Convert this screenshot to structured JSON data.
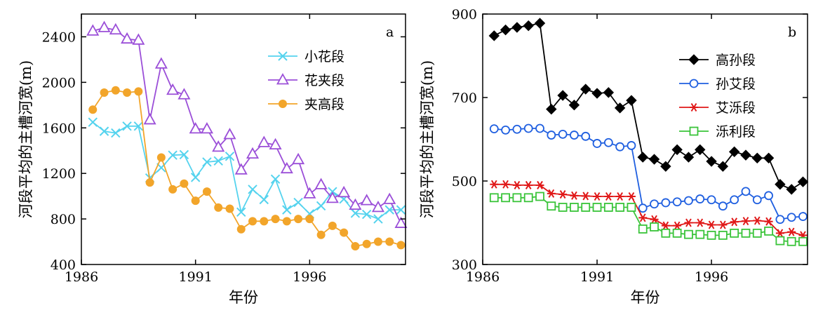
{
  "chart_data": [
    {
      "type": "line",
      "panel_label": "a",
      "xlabel": "年份",
      "ylabel": "河段平均的主槽河宽(m)",
      "xlim": [
        1986,
        2000.2
      ],
      "ylim": [
        400,
        2600
      ],
      "xticks": [
        1986,
        1991,
        1996
      ],
      "yticks": [
        400,
        800,
        1200,
        1600,
        2000,
        2400
      ],
      "x_tick_labels": [
        "1986",
        "1991",
        "1996"
      ],
      "y_tick_labels": [
        "400",
        "800",
        "1200",
        "1600",
        "2000",
        "2400"
      ],
      "legend_position": "upper-right",
      "series": [
        {
          "name": "小花段",
          "color": "#55d3ee",
          "marker": "x",
          "x": [
            1986.5,
            1987,
            1987.5,
            1988,
            1988.5,
            1989,
            1989.5,
            1990,
            1990.5,
            1991,
            1991.5,
            1992,
            1992.5,
            1993,
            1993.5,
            1994,
            1994.5,
            1995,
            1995.5,
            1996,
            1996.5,
            1997,
            1997.5,
            1998,
            1998.5,
            1999,
            1999.5,
            2000
          ],
          "values": [
            1650,
            1570,
            1555,
            1615,
            1615,
            1160,
            1250,
            1360,
            1365,
            1165,
            1300,
            1310,
            1350,
            860,
            1060,
            970,
            1150,
            880,
            945,
            845,
            915,
            1040,
            975,
            850,
            840,
            800,
            880,
            880
          ]
        },
        {
          "name": "花夹段",
          "color": "#9b4fd8",
          "marker": "triangle",
          "x": [
            1986.5,
            1987,
            1987.5,
            1988,
            1988.5,
            1989,
            1989.5,
            1990,
            1990.5,
            1991,
            1991.5,
            1992,
            1992.5,
            1993,
            1993.5,
            1994,
            1994.5,
            1995,
            1995.5,
            1996,
            1996.5,
            1997,
            1997.5,
            1998,
            1998.5,
            1999,
            1999.5,
            2000
          ],
          "values": [
            2450,
            2480,
            2460,
            2380,
            2370,
            1670,
            2160,
            1930,
            1890,
            1590,
            1590,
            1430,
            1540,
            1230,
            1370,
            1470,
            1450,
            1240,
            1320,
            1020,
            1100,
            980,
            1030,
            920,
            960,
            900,
            970,
            760
          ]
        },
        {
          "name": "夹高段",
          "color": "#f2a52a",
          "marker": "circle",
          "x": [
            1986.5,
            1987,
            1987.5,
            1988,
            1988.5,
            1989,
            1989.5,
            1990,
            1990.5,
            1991,
            1991.5,
            1992,
            1992.5,
            1993,
            1993.5,
            1994,
            1994.5,
            1995,
            1995.5,
            1996,
            1996.5,
            1997,
            1997.5,
            1998,
            1998.5,
            1999,
            1999.5,
            2000
          ],
          "values": [
            1760,
            1910,
            1930,
            1910,
            1920,
            1120,
            1340,
            1060,
            1110,
            960,
            1040,
            900,
            890,
            710,
            780,
            780,
            800,
            780,
            800,
            800,
            660,
            740,
            680,
            560,
            580,
            600,
            600,
            570
          ]
        }
      ]
    },
    {
      "type": "line",
      "panel_label": "b",
      "xlabel": "年份",
      "ylabel": "河段平均的主槽河宽(m)",
      "xlim": [
        1986,
        2000.2
      ],
      "ylim": [
        300,
        900
      ],
      "xticks": [
        1986,
        1991,
        1996
      ],
      "yticks": [
        300,
        500,
        700,
        900
      ],
      "x_tick_labels": [
        "1986",
        "1991",
        "1996"
      ],
      "y_tick_labels": [
        "300",
        "500",
        "700",
        "900"
      ],
      "legend_position": "upper-right",
      "series": [
        {
          "name": "高孙段",
          "color": "#000000",
          "marker": "diamond",
          "x": [
            1986.5,
            1987,
            1987.5,
            1988,
            1988.5,
            1989,
            1989.5,
            1990,
            1990.5,
            1991,
            1991.5,
            1992,
            1992.5,
            1993,
            1993.5,
            1994,
            1994.5,
            1995,
            1995.5,
            1996,
            1996.5,
            1997,
            1997.5,
            1998,
            1998.5,
            1999,
            1999.5,
            2000
          ],
          "values": [
            848,
            862,
            868,
            872,
            878,
            672,
            705,
            682,
            720,
            710,
            712,
            675,
            693,
            557,
            552,
            535,
            575,
            557,
            575,
            547,
            535,
            570,
            562,
            555,
            555,
            492,
            480,
            498
          ]
        },
        {
          "name": "孙艾段",
          "color": "#1f5fe0",
          "marker": "circle-open",
          "x": [
            1986.5,
            1987,
            1987.5,
            1988,
            1988.5,
            1989,
            1989.5,
            1990,
            1990.5,
            1991,
            1991.5,
            1992,
            1992.5,
            1993,
            1993.5,
            1994,
            1994.5,
            1995,
            1995.5,
            1996,
            1996.5,
            1997,
            1997.5,
            1998,
            1998.5,
            1999,
            1999.5,
            2000
          ],
          "values": [
            625,
            622,
            624,
            626,
            626,
            610,
            612,
            610,
            607,
            590,
            592,
            582,
            585,
            435,
            445,
            448,
            450,
            453,
            457,
            455,
            440,
            455,
            475,
            455,
            465,
            408,
            413,
            415
          ]
        },
        {
          "name": "艾泺段",
          "color": "#e01818",
          "marker": "asterisk",
          "x": [
            1986.5,
            1987,
            1987.5,
            1988,
            1988.5,
            1989,
            1989.5,
            1990,
            1990.5,
            1991,
            1991.5,
            1992,
            1992.5,
            1993,
            1993.5,
            1994,
            1994.5,
            1995,
            1995.5,
            1996,
            1996.5,
            1997,
            1997.5,
            1998,
            1998.5,
            1999,
            1999.5,
            2000
          ],
          "values": [
            492,
            492,
            490,
            490,
            490,
            470,
            468,
            465,
            464,
            463,
            463,
            463,
            463,
            412,
            408,
            393,
            393,
            400,
            400,
            395,
            395,
            402,
            404,
            405,
            403,
            375,
            378,
            370
          ]
        },
        {
          "name": "泺利段",
          "color": "#3ac43a",
          "marker": "square-open",
          "x": [
            1986.5,
            1987,
            1987.5,
            1988,
            1988.5,
            1989,
            1989.5,
            1990,
            1990.5,
            1991,
            1991.5,
            1992,
            1992.5,
            1993,
            1993.5,
            1994,
            1994.5,
            1995,
            1995.5,
            1996,
            1996.5,
            1997,
            1997.5,
            1998,
            1998.5,
            1999,
            1999.5,
            2000
          ],
          "values": [
            460,
            460,
            460,
            460,
            463,
            440,
            437,
            437,
            437,
            437,
            437,
            437,
            437,
            385,
            390,
            375,
            375,
            372,
            372,
            370,
            370,
            375,
            375,
            375,
            380,
            357,
            355,
            355
          ]
        }
      ]
    }
  ]
}
